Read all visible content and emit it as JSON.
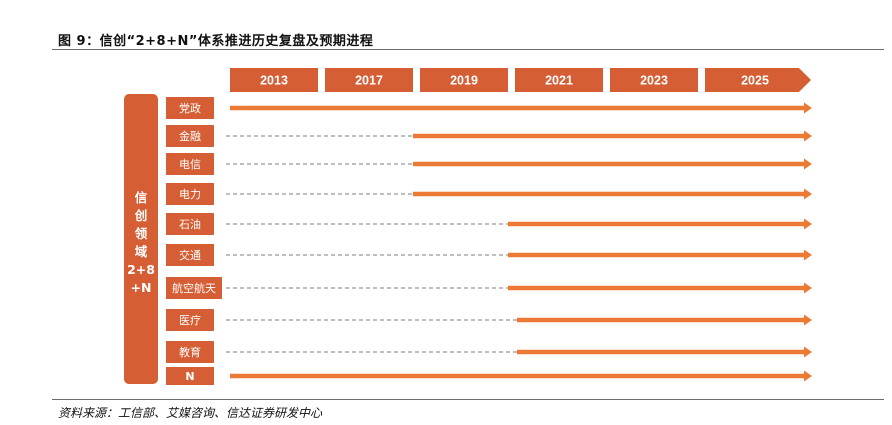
{
  "figure": {
    "title": "图 9：信创“2+8+N”体系推进历史复盘及预期进程",
    "source": "资料来源：工信部、艾媒咨询、信达证券研发中心"
  },
  "colors": {
    "accent": "#d55e35",
    "arrow": "#ec7a34",
    "dash": "#7f7f7f"
  },
  "side_label": [
    "信",
    "创",
    "领",
    "域",
    "2+8",
    "+N"
  ],
  "years": [
    "2013",
    "2017",
    "2019",
    "2021",
    "2023",
    "2025"
  ],
  "rows": [
    {
      "label": "党政",
      "start": "2013"
    },
    {
      "label": "金融",
      "start": "2017"
    },
    {
      "label": "电信",
      "start": "2017"
    },
    {
      "label": "电力",
      "start": "2017"
    },
    {
      "label": "石油",
      "start": "2019"
    },
    {
      "label": "交通",
      "start": "2019"
    },
    {
      "label": "航空航天",
      "start": "2019"
    },
    {
      "label": "医疗",
      "start": "2019"
    },
    {
      "label": "教育",
      "start": "2019"
    },
    {
      "label": "N",
      "start": "2013"
    }
  ]
}
